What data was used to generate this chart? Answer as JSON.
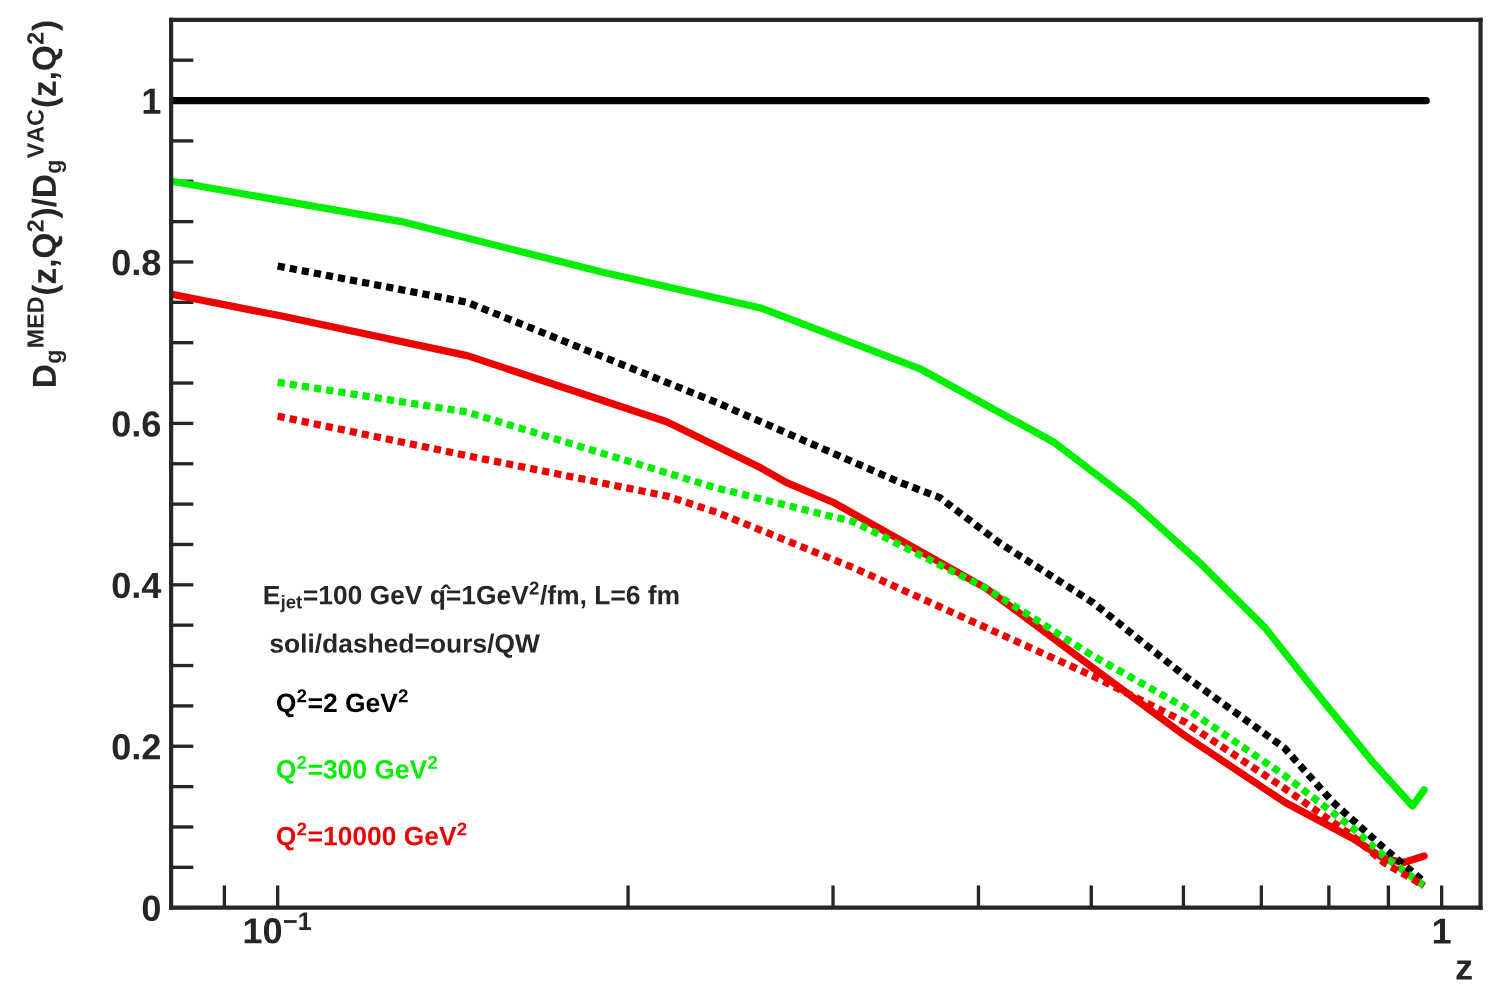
{
  "chart_data": {
    "type": "line",
    "xlabel": "z",
    "ylabel": "D$_{g}$$^{MED}$(z,Q$^{2}$)/D$_{g}$$^{VAC}$(z,Q$^{2}$)",
    "log": "x",
    "grid": false,
    "legend": "bottom left",
    "xlim": [
      0.081,
      1.08
    ],
    "ylim": [
      0,
      1.1
    ],
    "xticks": [
      {
        "value": 0.09,
        "label": null
      },
      {
        "value": 0.1,
        "label": "10$^{−1}$"
      },
      {
        "value": 0.2,
        "label": null
      },
      {
        "value": 0.3,
        "label": null
      },
      {
        "value": 0.4,
        "label": null
      },
      {
        "value": 0.5,
        "label": null
      },
      {
        "value": 0.6,
        "label": null
      },
      {
        "value": 0.7,
        "label": null
      },
      {
        "value": 0.8,
        "label": null
      },
      {
        "value": 0.9,
        "label": null
      },
      {
        "value": 1,
        "label": "1"
      }
    ],
    "yticks": [
      0,
      {
        "value": 0.05,
        "label": null
      },
      {
        "value": 0.1,
        "label": null
      },
      {
        "value": 0.15,
        "label": null
      },
      0.2,
      {
        "value": 0.25,
        "label": null
      },
      {
        "value": 0.3,
        "label": null
      },
      {
        "value": 0.35,
        "label": null
      },
      0.4,
      {
        "value": 0.45,
        "label": null
      },
      {
        "value": 0.5,
        "label": null
      },
      {
        "value": 0.55,
        "label": null
      },
      0.6,
      {
        "value": 0.65,
        "label": null
      },
      {
        "value": 0.7,
        "label": null
      },
      {
        "value": 0.75,
        "label": null
      },
      0.8,
      {
        "value": 0.85,
        "label": null
      },
      {
        "value": 0.9,
        "label": null
      },
      {
        "value": 0.95,
        "label": null
      },
      1,
      {
        "value": 1.05,
        "label": null
      }
    ],
    "annotations": [
      "E$_{jet}$=100 GeV q̂=1GeV$^{2}$/fm, L=6 fm",
      "soli/dashed=ours/QW"
    ],
    "series": [
      {
        "name": "Q$^{2}$=2 GeV$^{2}$",
        "color": "#000000",
        "line_style": "solid",
        "x": [
          0.081,
          0.97
        ],
        "values": [
          1,
          1
        ]
      },
      {
        "name": "Q$^{2}$=300 GeV$^{2}$",
        "color": "#00ee00",
        "line_style": "solid",
        "x": [
          0.0811,
          0.1277,
          0.1895,
          0.26,
          0.356,
          0.464,
          0.543,
          0.619,
          0.705,
          0.784,
          0.873,
          0.944,
          0.966
        ],
        "values": [
          0.9,
          0.85,
          0.788,
          0.743,
          0.668,
          0.577,
          0.502,
          0.428,
          0.347,
          0.263,
          0.18,
          0.126,
          0.146
        ]
      },
      {
        "name": "Q$^{2}$=10000 GeV$^{2}$",
        "color": "#ee0000",
        "line_style": "solid",
        "x": [
          0.0811,
          0.1008,
          0.1455,
          0.2159,
          0.26,
          0.2734,
          0.3003,
          0.4059,
          0.5017,
          0.6018,
          0.7326,
          0.838,
          0.8919,
          0.9278,
          0.966
        ],
        "values": [
          0.76,
          0.733,
          0.684,
          0.602,
          0.545,
          0.527,
          0.502,
          0.396,
          0.297,
          0.213,
          0.131,
          0.086,
          0.061,
          0.056,
          0.064
        ]
      },
      {
        "color": "#000000",
        "line_style": "dashed",
        "x": [
          0.1,
          0.1455,
          0.2382,
          0.3424,
          0.3706,
          0.417,
          0.5017,
          0.6018,
          0.7326,
          0.806,
          0.8919,
          0.966
        ],
        "values": [
          0.795,
          0.75,
          0.626,
          0.527,
          0.508,
          0.452,
          0.378,
          0.287,
          0.198,
          0.131,
          0.074,
          0.032
        ]
      },
      {
        "color": "#00ee00",
        "line_style": "dashed",
        "x": [
          0.1,
          0.1455,
          0.2382,
          0.3126,
          0.4059,
          0.5017,
          0.6018,
          0.7326,
          0.838,
          0.8919,
          0.966
        ],
        "values": [
          0.651,
          0.614,
          0.52,
          0.478,
          0.396,
          0.312,
          0.248,
          0.164,
          0.099,
          0.064,
          0.027
        ]
      },
      {
        "color": "#ee0000",
        "line_style": "dashed",
        "x": [
          0.1,
          0.1455,
          0.2159,
          0.2382,
          0.3126,
          0.4059,
          0.5017,
          0.6018,
          0.7326,
          0.838,
          0.8919,
          0.966
        ],
        "values": [
          0.609,
          0.56,
          0.51,
          0.49,
          0.421,
          0.347,
          0.287,
          0.23,
          0.148,
          0.089,
          0.056,
          0.027
        ]
      }
    ]
  }
}
